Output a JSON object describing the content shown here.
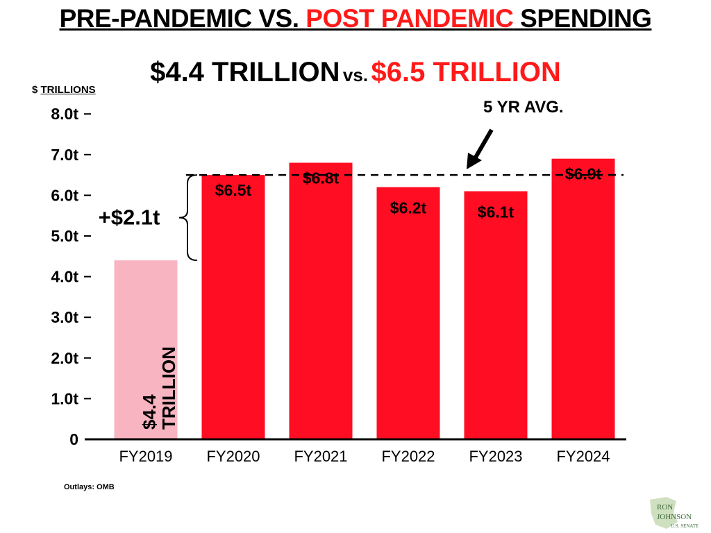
{
  "title": {
    "part1": "PRE-PANDEMIC VS. ",
    "part2": "POST PANDEMIC",
    "part3": " SPENDING"
  },
  "subtitle": {
    "left": "$4.4 TRILLION",
    "vs": "vs.",
    "right": "$6.5 TRILLION"
  },
  "unit_label": {
    "prefix": "$ ",
    "unit": "TRILLIONS"
  },
  "avg_label": "5 YR AVG.",
  "increase_label": "+$2.1t",
  "source": "Outlays: OMB",
  "logo": {
    "line1": "RON",
    "line2": "JOHNSON",
    "line3": "U.S. SENATE"
  },
  "colors": {
    "pre": "#f8b4c0",
    "post": "#ff0d22",
    "title_red": "#ff1a1a",
    "text": "#000000"
  },
  "chart_data": {
    "type": "bar",
    "categories": [
      "FY2019",
      "FY2020",
      "FY2021",
      "FY2022",
      "FY2023",
      "FY2024"
    ],
    "values": [
      4.4,
      6.5,
      6.8,
      6.2,
      6.1,
      6.9
    ],
    "data_labels": [
      "$4.4 TRILLION",
      "$6.5t",
      "$6.8t",
      "$6.2t",
      "$6.1t",
      "$6.9t"
    ],
    "y_ticks": [
      {
        "value": 0,
        "label": "0"
      },
      {
        "value": 1,
        "label": "1.0t"
      },
      {
        "value": 2,
        "label": "2.0t"
      },
      {
        "value": 3,
        "label": "3.0t"
      },
      {
        "value": 4,
        "label": "4.0t"
      },
      {
        "value": 5,
        "label": "5.0t"
      },
      {
        "value": 6,
        "label": "6.0t"
      },
      {
        "value": 7,
        "label": "7.0t"
      },
      {
        "value": 8,
        "label": "8.0t"
      }
    ],
    "ylim": [
      0,
      8
    ],
    "average_line": 6.5,
    "grid": false,
    "legend": "none"
  }
}
